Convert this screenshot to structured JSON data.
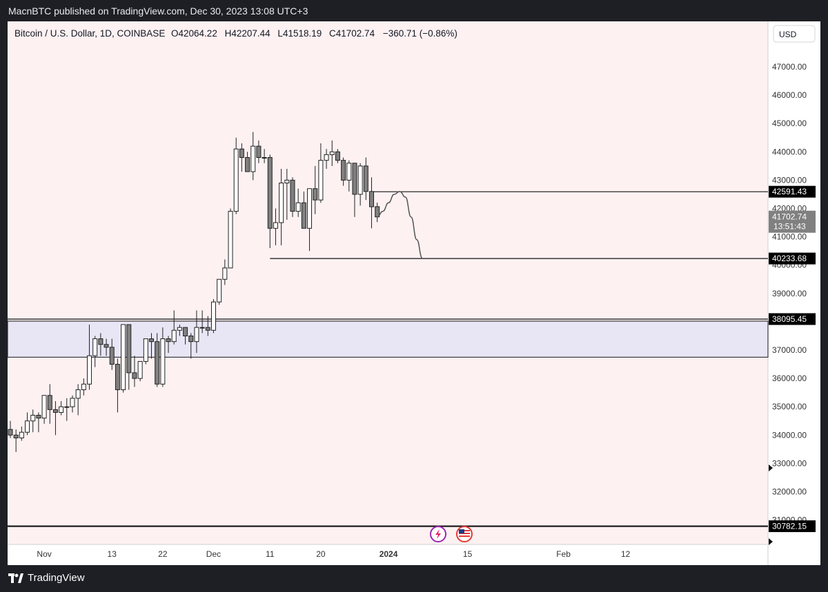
{
  "publisher_line": "MacnBTC published on TradingView.com, Dec 30, 2023 13:08 UTC+3",
  "brand": {
    "name": "TradingView",
    "icon": "tradingview-logo-icon"
  },
  "colors": {
    "chart_bg": "#fdf1f2",
    "bull_body": "#ffffff",
    "bear_body": "#808080",
    "candle_border": "#202020",
    "zone_fill": "#e8e6f5",
    "line": "#111111",
    "axis_text": "#333333",
    "label_bg": "#000000",
    "label_text": "#ffffff"
  },
  "legend": {
    "symbol": "Bitcoin / U.S. Dollar, 1D, COINBASE",
    "open_label": "O",
    "open": "42064.22",
    "high_label": "H",
    "high": "42207.44",
    "low_label": "L",
    "low": "41518.19",
    "close_label": "C",
    "close": "41702.74",
    "change": "−360.71 (−0.86%)"
  },
  "currency": "USD",
  "price_labels": {
    "resistance": "42591.43",
    "last": "41702.74",
    "countdown": "13:51:43",
    "support": "40233.68",
    "zone_top": "38095.45",
    "lower": "30782.15"
  },
  "event_icons": [
    "lightning-event-icon",
    "us-flag-event-icon"
  ],
  "chart_data": {
    "type": "candlestick",
    "title": "Bitcoin / U.S. Dollar, 1D, COINBASE",
    "ylim": [
      30400,
      47700
    ],
    "y_ticks": [
      31000,
      32000,
      33000,
      34000,
      35000,
      36000,
      37000,
      38000,
      39000,
      40000,
      41000,
      42000,
      43000,
      44000,
      45000,
      46000,
      47000
    ],
    "y_tick_labels": [
      "31000.00",
      "32000.00",
      "33000.00",
      "34000.00",
      "35000.00",
      "36000.00",
      "37000.00",
      "38000.00",
      "39000.00",
      "40000.00",
      "41000.00",
      "42000.00",
      "43000.00",
      "44000.00",
      "45000.00",
      "46000.00",
      "47000.00"
    ],
    "x_ticks": [
      {
        "label": "Nov",
        "date": "2023-11-01"
      },
      {
        "label": "13",
        "date": "2023-11-13"
      },
      {
        "label": "22",
        "date": "2023-11-22"
      },
      {
        "label": "Dec",
        "date": "2023-12-01"
      },
      {
        "label": "11",
        "date": "2023-12-11"
      },
      {
        "label": "20",
        "date": "2023-12-20"
      },
      {
        "label": "2024",
        "date": "2024-01-01"
      },
      {
        "label": "15",
        "date": "2024-01-15"
      },
      {
        "label": "Feb",
        "date": "2024-02-01"
      },
      {
        "label": "12",
        "date": "2024-02-12"
      }
    ],
    "candles": [
      {
        "date": "2023-10-26",
        "o": 34200,
        "h": 34500,
        "l": 33900,
        "c": 34000
      },
      {
        "date": "2023-10-27",
        "o": 34000,
        "h": 34200,
        "l": 33400,
        "c": 33900
      },
      {
        "date": "2023-10-28",
        "o": 33900,
        "h": 34300,
        "l": 33800,
        "c": 34100
      },
      {
        "date": "2023-10-29",
        "o": 34100,
        "h": 34800,
        "l": 34000,
        "c": 34500
      },
      {
        "date": "2023-10-30",
        "o": 34500,
        "h": 34900,
        "l": 34100,
        "c": 34700
      },
      {
        "date": "2023-10-31",
        "o": 34700,
        "h": 34800,
        "l": 34100,
        "c": 34600
      },
      {
        "date": "2023-11-01",
        "o": 34600,
        "h": 35300,
        "l": 34400,
        "c": 35400
      },
      {
        "date": "2023-11-02",
        "o": 35400,
        "h": 35800,
        "l": 34400,
        "c": 34900
      },
      {
        "date": "2023-11-03",
        "o": 34900,
        "h": 35200,
        "l": 34000,
        "c": 34800
      },
      {
        "date": "2023-11-04",
        "o": 34800,
        "h": 35200,
        "l": 34700,
        "c": 35000
      },
      {
        "date": "2023-11-05",
        "o": 35000,
        "h": 35300,
        "l": 34500,
        "c": 35000
      },
      {
        "date": "2023-11-06",
        "o": 35000,
        "h": 35400,
        "l": 34800,
        "c": 35300
      },
      {
        "date": "2023-11-07",
        "o": 35300,
        "h": 35800,
        "l": 34700,
        "c": 35600
      },
      {
        "date": "2023-11-08",
        "o": 35600,
        "h": 36000,
        "l": 35400,
        "c": 35800
      },
      {
        "date": "2023-11-09",
        "o": 35800,
        "h": 37900,
        "l": 35600,
        "c": 36800
      },
      {
        "date": "2023-11-10",
        "o": 36800,
        "h": 37500,
        "l": 36400,
        "c": 37400
      },
      {
        "date": "2023-11-11",
        "o": 37400,
        "h": 37600,
        "l": 36800,
        "c": 37200
      },
      {
        "date": "2023-11-12",
        "o": 37200,
        "h": 37400,
        "l": 36800,
        "c": 37100
      },
      {
        "date": "2023-11-13",
        "o": 37100,
        "h": 37400,
        "l": 36300,
        "c": 36500
      },
      {
        "date": "2023-11-14",
        "o": 36500,
        "h": 36700,
        "l": 34800,
        "c": 35600
      },
      {
        "date": "2023-11-15",
        "o": 35600,
        "h": 37900,
        "l": 35500,
        "c": 37900
      },
      {
        "date": "2023-11-16",
        "o": 37900,
        "h": 37900,
        "l": 35600,
        "c": 36200
      },
      {
        "date": "2023-11-17",
        "o": 36200,
        "h": 36800,
        "l": 35700,
        "c": 36000
      },
      {
        "date": "2023-11-18",
        "o": 36000,
        "h": 36600,
        "l": 35900,
        "c": 36600
      },
      {
        "date": "2023-11-19",
        "o": 36600,
        "h": 37400,
        "l": 36500,
        "c": 37400
      },
      {
        "date": "2023-11-20",
        "o": 37400,
        "h": 37600,
        "l": 36700,
        "c": 37300
      },
      {
        "date": "2023-11-21",
        "o": 37300,
        "h": 37600,
        "l": 35700,
        "c": 35800
      },
      {
        "date": "2023-11-22",
        "o": 35800,
        "h": 37800,
        "l": 35700,
        "c": 37400
      },
      {
        "date": "2023-11-23",
        "o": 37400,
        "h": 37500,
        "l": 36900,
        "c": 37300
      },
      {
        "date": "2023-11-24",
        "o": 37300,
        "h": 38400,
        "l": 37200,
        "c": 37700
      },
      {
        "date": "2023-11-25",
        "o": 37700,
        "h": 37900,
        "l": 37500,
        "c": 37800
      },
      {
        "date": "2023-11-26",
        "o": 37800,
        "h": 37800,
        "l": 37200,
        "c": 37500
      },
      {
        "date": "2023-11-27",
        "o": 37500,
        "h": 37600,
        "l": 36700,
        "c": 37300
      },
      {
        "date": "2023-11-28",
        "o": 37300,
        "h": 38400,
        "l": 36900,
        "c": 37800
      },
      {
        "date": "2023-11-29",
        "o": 37800,
        "h": 38400,
        "l": 37600,
        "c": 37800
      },
      {
        "date": "2023-11-30",
        "o": 37800,
        "h": 38200,
        "l": 37500,
        "c": 37700
      },
      {
        "date": "2023-12-01",
        "o": 37700,
        "h": 38800,
        "l": 37600,
        "c": 38700
      },
      {
        "date": "2023-12-02",
        "o": 38700,
        "h": 39500,
        "l": 38600,
        "c": 39500
      },
      {
        "date": "2023-12-03",
        "o": 39500,
        "h": 40200,
        "l": 39300,
        "c": 39900
      },
      {
        "date": "2023-12-04",
        "o": 39900,
        "h": 42000,
        "l": 39900,
        "c": 41900
      },
      {
        "date": "2023-12-05",
        "o": 41900,
        "h": 44500,
        "l": 41800,
        "c": 44100
      },
      {
        "date": "2023-12-06",
        "o": 44100,
        "h": 44300,
        "l": 43300,
        "c": 43800
      },
      {
        "date": "2023-12-07",
        "o": 43800,
        "h": 44000,
        "l": 43300,
        "c": 43300
      },
      {
        "date": "2023-12-08",
        "o": 43300,
        "h": 44700,
        "l": 43000,
        "c": 44200
      },
      {
        "date": "2023-12-09",
        "o": 44200,
        "h": 44400,
        "l": 43600,
        "c": 43800
      },
      {
        "date": "2023-12-10",
        "o": 43800,
        "h": 44100,
        "l": 43600,
        "c": 43800
      },
      {
        "date": "2023-12-11",
        "o": 43800,
        "h": 43900,
        "l": 40600,
        "c": 41300
      },
      {
        "date": "2023-12-12",
        "o": 41300,
        "h": 42000,
        "l": 40700,
        "c": 41500
      },
      {
        "date": "2023-12-13",
        "o": 41500,
        "h": 43400,
        "l": 40700,
        "c": 42900
      },
      {
        "date": "2023-12-14",
        "o": 42900,
        "h": 43400,
        "l": 41600,
        "c": 43000
      },
      {
        "date": "2023-12-15",
        "o": 43000,
        "h": 43100,
        "l": 41700,
        "c": 41900
      },
      {
        "date": "2023-12-16",
        "o": 41900,
        "h": 42700,
        "l": 41700,
        "c": 42200
      },
      {
        "date": "2023-12-17",
        "o": 42200,
        "h": 42600,
        "l": 41300,
        "c": 41300
      },
      {
        "date": "2023-12-18",
        "o": 41300,
        "h": 42700,
        "l": 40500,
        "c": 42700
      },
      {
        "date": "2023-12-19",
        "o": 42700,
        "h": 43500,
        "l": 41800,
        "c": 42300
      },
      {
        "date": "2023-12-20",
        "o": 42300,
        "h": 44300,
        "l": 42200,
        "c": 43700
      },
      {
        "date": "2023-12-21",
        "o": 43700,
        "h": 44100,
        "l": 43400,
        "c": 43900
      },
      {
        "date": "2023-12-22",
        "o": 43900,
        "h": 44400,
        "l": 43500,
        "c": 44000
      },
      {
        "date": "2023-12-23",
        "o": 44000,
        "h": 44100,
        "l": 43600,
        "c": 43700
      },
      {
        "date": "2023-12-24",
        "o": 43700,
        "h": 43800,
        "l": 42800,
        "c": 43000
      },
      {
        "date": "2023-12-25",
        "o": 43000,
        "h": 43700,
        "l": 42600,
        "c": 43600
      },
      {
        "date": "2023-12-26",
        "o": 43600,
        "h": 43600,
        "l": 41700,
        "c": 42500
      },
      {
        "date": "2023-12-27",
        "o": 42500,
        "h": 43600,
        "l": 42100,
        "c": 43500
      },
      {
        "date": "2023-12-28",
        "o": 43500,
        "h": 43800,
        "l": 42300,
        "c": 42600
      },
      {
        "date": "2023-12-29",
        "o": 42600,
        "h": 43100,
        "l": 41300,
        "c": 42060
      },
      {
        "date": "2023-12-30",
        "o": 42064.22,
        "h": 42207.44,
        "l": 41518.19,
        "c": 41702.74
      }
    ],
    "levels": {
      "resistance": 42591.43,
      "support": 40233.68,
      "zone_top": 38095.45,
      "zone_bottom": 36750,
      "lower": 30782.15
    },
    "projection_path": [
      {
        "date": "2023-12-31",
        "y": 41900
      },
      {
        "date": "2024-01-01",
        "y": 42200
      },
      {
        "date": "2024-01-02",
        "y": 42500
      },
      {
        "date": "2024-01-03",
        "y": 42600
      },
      {
        "date": "2024-01-04",
        "y": 42400
      },
      {
        "date": "2024-01-05",
        "y": 41700
      },
      {
        "date": "2024-01-06",
        "y": 40900
      },
      {
        "date": "2024-01-07",
        "y": 40240
      }
    ]
  }
}
